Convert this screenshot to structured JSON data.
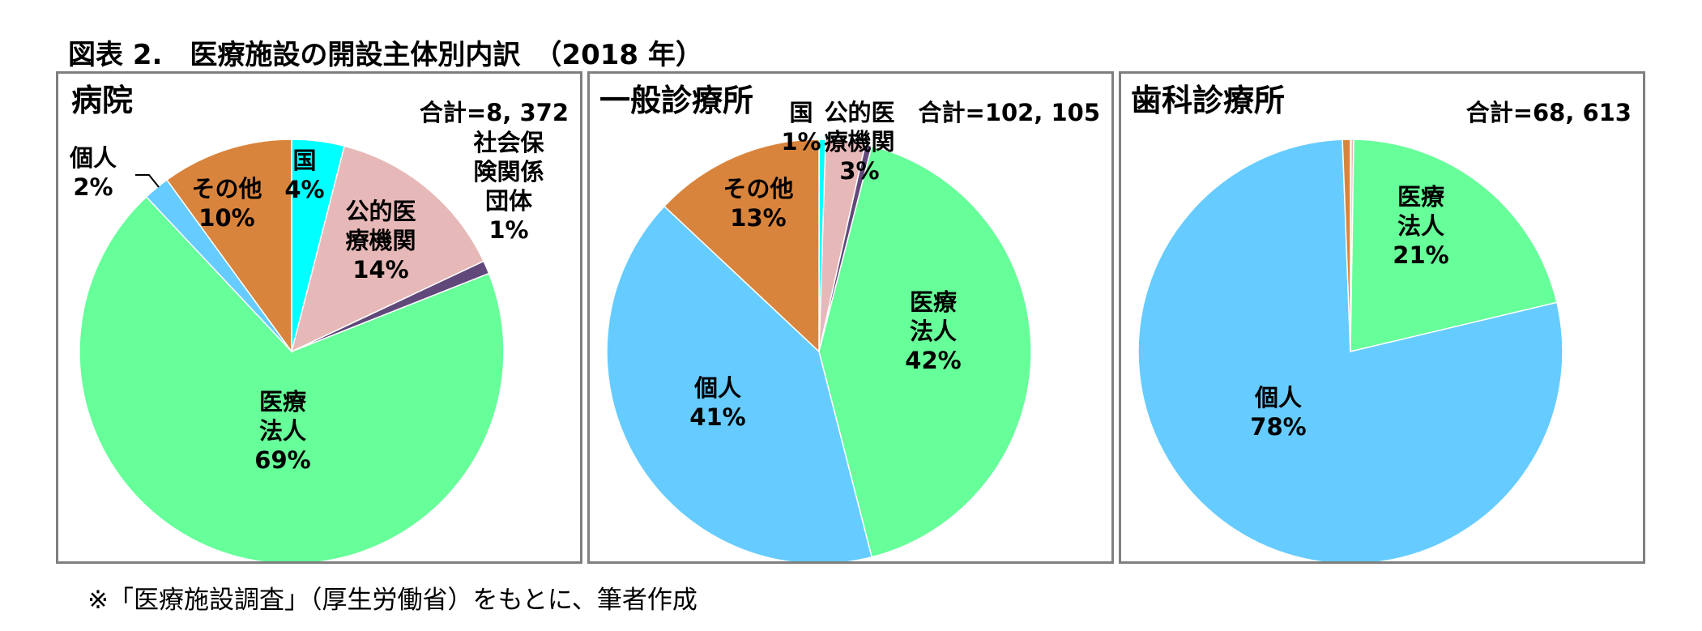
{
  "figure_title": "図表 2.　医療施設の開設主体別内訳　（2018 年）",
  "source_note": "※「医療施設調査」（厚生労働省）をもとに、筆者作成",
  "chart_data": [
    {
      "type": "pie",
      "title": "病院",
      "total_label": "合計=8, 372",
      "slices": [
        {
          "name": "国",
          "value": 4,
          "label_lines": [
            "国",
            "4%"
          ],
          "color": "#00ffff"
        },
        {
          "name": "公的医療機関",
          "value": 14,
          "label_lines": [
            "公的医",
            "療機関",
            "14%"
          ],
          "color": "#e6b9b8"
        },
        {
          "name": "社会保険関係団体",
          "value": 1,
          "label_lines": [
            "社会保",
            "険関係",
            "団体",
            "1%"
          ],
          "color": "#60497a"
        },
        {
          "name": "医療法人",
          "value": 69,
          "label_lines": [
            "医療",
            "法人",
            "69%"
          ],
          "color": "#66ff99"
        },
        {
          "name": "個人",
          "value": 2,
          "label_lines": [
            "個人",
            "2%"
          ],
          "color": "#66ccff"
        },
        {
          "name": "その他",
          "value": 10,
          "label_lines": [
            "その他",
            "10%"
          ],
          "color": "#d9843d"
        }
      ]
    },
    {
      "type": "pie",
      "title": "一般診療所",
      "total_label": "合計=102, 105",
      "slices": [
        {
          "name": "国",
          "value": 0.5,
          "label_lines": [
            "国",
            "1%"
          ],
          "color": "#00ffff"
        },
        {
          "name": "公的医療機関",
          "value": 3,
          "label_lines": [
            "公的医",
            "療機関",
            "3%"
          ],
          "color": "#e6b9b8"
        },
        {
          "name": "社会保険関係団体",
          "value": 0.5,
          "label_lines": [],
          "color": "#60497a"
        },
        {
          "name": "医療法人",
          "value": 42,
          "label_lines": [
            "医療",
            "法人",
            "42%"
          ],
          "color": "#66ff99"
        },
        {
          "name": "個人",
          "value": 41,
          "label_lines": [
            "個人",
            "41%"
          ],
          "color": "#66ccff"
        },
        {
          "name": "その他",
          "value": 13,
          "label_lines": [
            "その他",
            "13%"
          ],
          "color": "#d9843d"
        }
      ]
    },
    {
      "type": "pie",
      "title": "歯科診療所",
      "total_label": "合計=68, 613",
      "slices": [
        {
          "name": "国",
          "value": 0.05,
          "label_lines": [],
          "color": "#00ffff"
        },
        {
          "name": "公的医療機関",
          "value": 0.2,
          "label_lines": [],
          "color": "#e6b9b8"
        },
        {
          "name": "医療法人",
          "value": 21,
          "label_lines": [
            "医療",
            "法人",
            "21%"
          ],
          "color": "#66ff99"
        },
        {
          "name": "個人",
          "value": 78,
          "label_lines": [
            "個人",
            "78%"
          ],
          "color": "#66ccff"
        },
        {
          "name": "その他",
          "value": 0.6,
          "label_lines": [],
          "color": "#d9843d"
        }
      ]
    }
  ]
}
